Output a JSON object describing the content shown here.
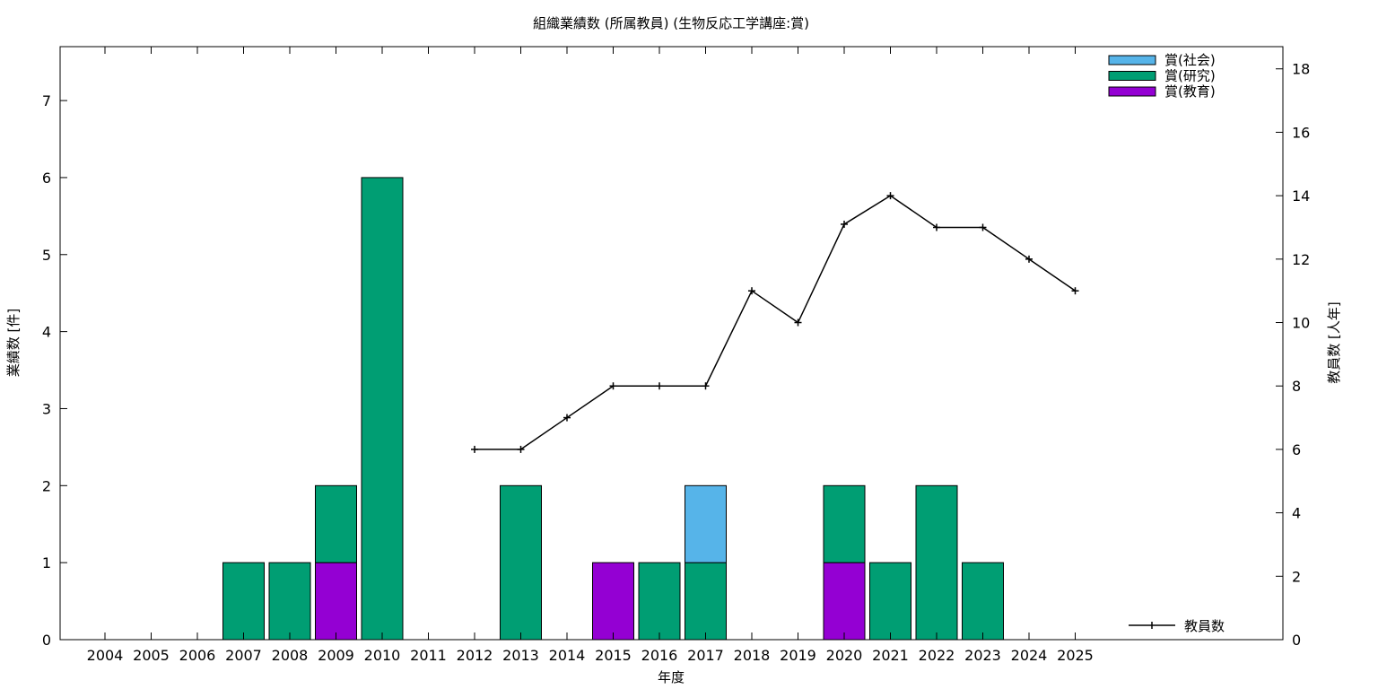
{
  "chart_data": {
    "type": "bar",
    "stacked": true,
    "title": "組織業績数 (所属教員) (生物反応工学講座:賞)",
    "xlabel": "年度",
    "ylabel": "業績数 [件]",
    "y2label": "教員数 [人年]",
    "categories": [
      "2004",
      "2005",
      "2006",
      "2007",
      "2008",
      "2009",
      "2010",
      "2011",
      "2012",
      "2013",
      "2014",
      "2015",
      "2016",
      "2017",
      "2018",
      "2019",
      "2020",
      "2021",
      "2022",
      "2023",
      "2024",
      "2025"
    ],
    "ylim": [
      0,
      7.7
    ],
    "y2lim": [
      0,
      18.7
    ],
    "yticks": [
      0,
      1,
      2,
      3,
      4,
      5,
      6,
      7
    ],
    "y2ticks": [
      0,
      2,
      4,
      6,
      8,
      10,
      12,
      14,
      16,
      18
    ],
    "legend_position": "top-right",
    "series": [
      {
        "name": "賞(教育)",
        "color": "#9400d3",
        "values": [
          0,
          0,
          0,
          0,
          0,
          1,
          0,
          0,
          0,
          0,
          0,
          1,
          0,
          0,
          0,
          0,
          1,
          0,
          0,
          0,
          0,
          0
        ]
      },
      {
        "name": "賞(研究)",
        "color": "#009e73",
        "values": [
          0,
          0,
          0,
          1,
          1,
          1,
          6,
          0,
          0,
          2,
          0,
          0,
          1,
          1,
          0,
          0,
          1,
          1,
          2,
          1,
          0,
          0
        ]
      },
      {
        "name": "賞(社会)",
        "color": "#56b4e9",
        "values": [
          0,
          0,
          0,
          0,
          0,
          0,
          0,
          0,
          0,
          0,
          0,
          0,
          0,
          1,
          0,
          0,
          0,
          0,
          0,
          0,
          0,
          0
        ]
      }
    ],
    "line_series": {
      "name": "教員数",
      "axis": "y2",
      "color": "#000000",
      "values": [
        null,
        null,
        null,
        null,
        null,
        null,
        null,
        null,
        6,
        6,
        7,
        8,
        8,
        8,
        11,
        10,
        13.1,
        14,
        13,
        13,
        12,
        11
      ]
    }
  }
}
